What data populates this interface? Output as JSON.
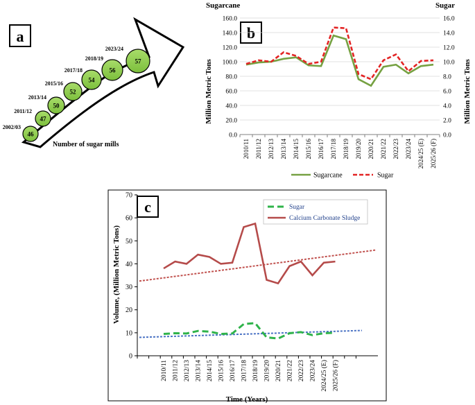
{
  "colors": {
    "sugarcane": "#76a142",
    "sugar_red": "#e32424",
    "sludge": "#b54b4a",
    "sugar_green": "#2fb34a",
    "sludge_trend": "#c0504d",
    "sugar_trend": "#4a72c4",
    "mill_fill": "#92d050",
    "axis": "#808080",
    "grid": "#d9d9d9"
  },
  "panel_a": {
    "badge": "a",
    "caption": "Number of sugar mills",
    "mills": [
      {
        "year": "2002/03",
        "count": "46"
      },
      {
        "year": "2011/12",
        "count": "47"
      },
      {
        "year": "2013/14",
        "count": "50"
      },
      {
        "year": "2015/16",
        "count": "52"
      },
      {
        "year": "2017/18",
        "count": "54"
      },
      {
        "year": "2018/19",
        "count": "56"
      },
      {
        "year": "2023/24",
        "count": "57"
      }
    ]
  },
  "chart_data": [
    {
      "id": "b",
      "type": "line",
      "badge": "b",
      "title_left": "Sugarcane",
      "title_right": "Sugar",
      "ylabel": "Million Metric Tons",
      "y2label": "Million Metric Tons",
      "ylim": [
        0,
        160
      ],
      "y2lim": [
        0,
        16
      ],
      "yticks": [
        "0.0",
        "20.0",
        "40.0",
        "60.0",
        "80.0",
        "100.0",
        "120.0",
        "140.0",
        "160.0"
      ],
      "y2ticks": [
        "0.0",
        "2.0",
        "4.0",
        "6.0",
        "8.0",
        "10.0",
        "12.0",
        "14.0",
        "16.0"
      ],
      "categories": [
        "2010/11",
        "2011/12",
        "2012/13",
        "2013/14",
        "2014/15",
        "2015/16",
        "2016/17",
        "2017/18",
        "2018/19",
        "2019/20",
        "2020/21",
        "2021/22",
        "2022/23",
        "2023/24",
        "2024/25 (E)",
        "2025/26 (F)"
      ],
      "series": [
        {
          "name": "Sugarcane",
          "axis": "left",
          "style": "solid",
          "values": [
            96,
            99,
            100,
            104,
            106,
            95,
            94,
            136,
            131,
            76,
            67,
            93,
            96,
            84,
            94,
            96
          ]
        },
        {
          "name": "Sugar",
          "axis": "right",
          "style": "dashed",
          "values": [
            9.7,
            10.2,
            10.0,
            11.3,
            10.8,
            9.7,
            10.0,
            14.7,
            14.6,
            8.3,
            7.6,
            10.2,
            11.0,
            8.7,
            10.1,
            10.2
          ]
        }
      ]
    },
    {
      "id": "c",
      "type": "line",
      "badge": "c",
      "ylabel": "Volume, (Million  Metric Tons)",
      "xlabel": "Time (Years)",
      "ylim": [
        0,
        70
      ],
      "yticks": [
        "0",
        "10",
        "20",
        "30",
        "40",
        "50",
        "60",
        "70"
      ],
      "categories": [
        "2010/11",
        "2011/12",
        "2012/13",
        "2013/14",
        "2014/15",
        "2015/16",
        "2016/17",
        "2017/18",
        "2018/19",
        "2019/20",
        "2020/21",
        "2021/22",
        "2022/23",
        "2023/24",
        "2024/25 (E)",
        "2025/26 (F)"
      ],
      "series": [
        {
          "name": "Sugar",
          "style": "dashed",
          "values": [
            9.5,
            9.8,
            9.7,
            10.8,
            10.5,
            9.5,
            9.7,
            13.8,
            14.2,
            8.0,
            7.5,
            9.8,
            10.3,
            9.0,
            9.8,
            10.0
          ]
        },
        {
          "name": "Calcium  Carbonate Sludge",
          "style": "solid",
          "values": [
            38,
            41,
            40,
            44,
            43,
            40,
            40.5,
            56,
            57.5,
            33,
            31.5,
            39,
            41,
            35,
            40.5,
            41
          ]
        }
      ],
      "trendlines": [
        {
          "series": "Calcium  Carbonate Sludge",
          "from": [
            32.5
          ],
          "to": [
            46
          ]
        },
        {
          "series": "Sugar",
          "from": [
            8
          ],
          "to": [
            11
          ]
        }
      ]
    }
  ]
}
